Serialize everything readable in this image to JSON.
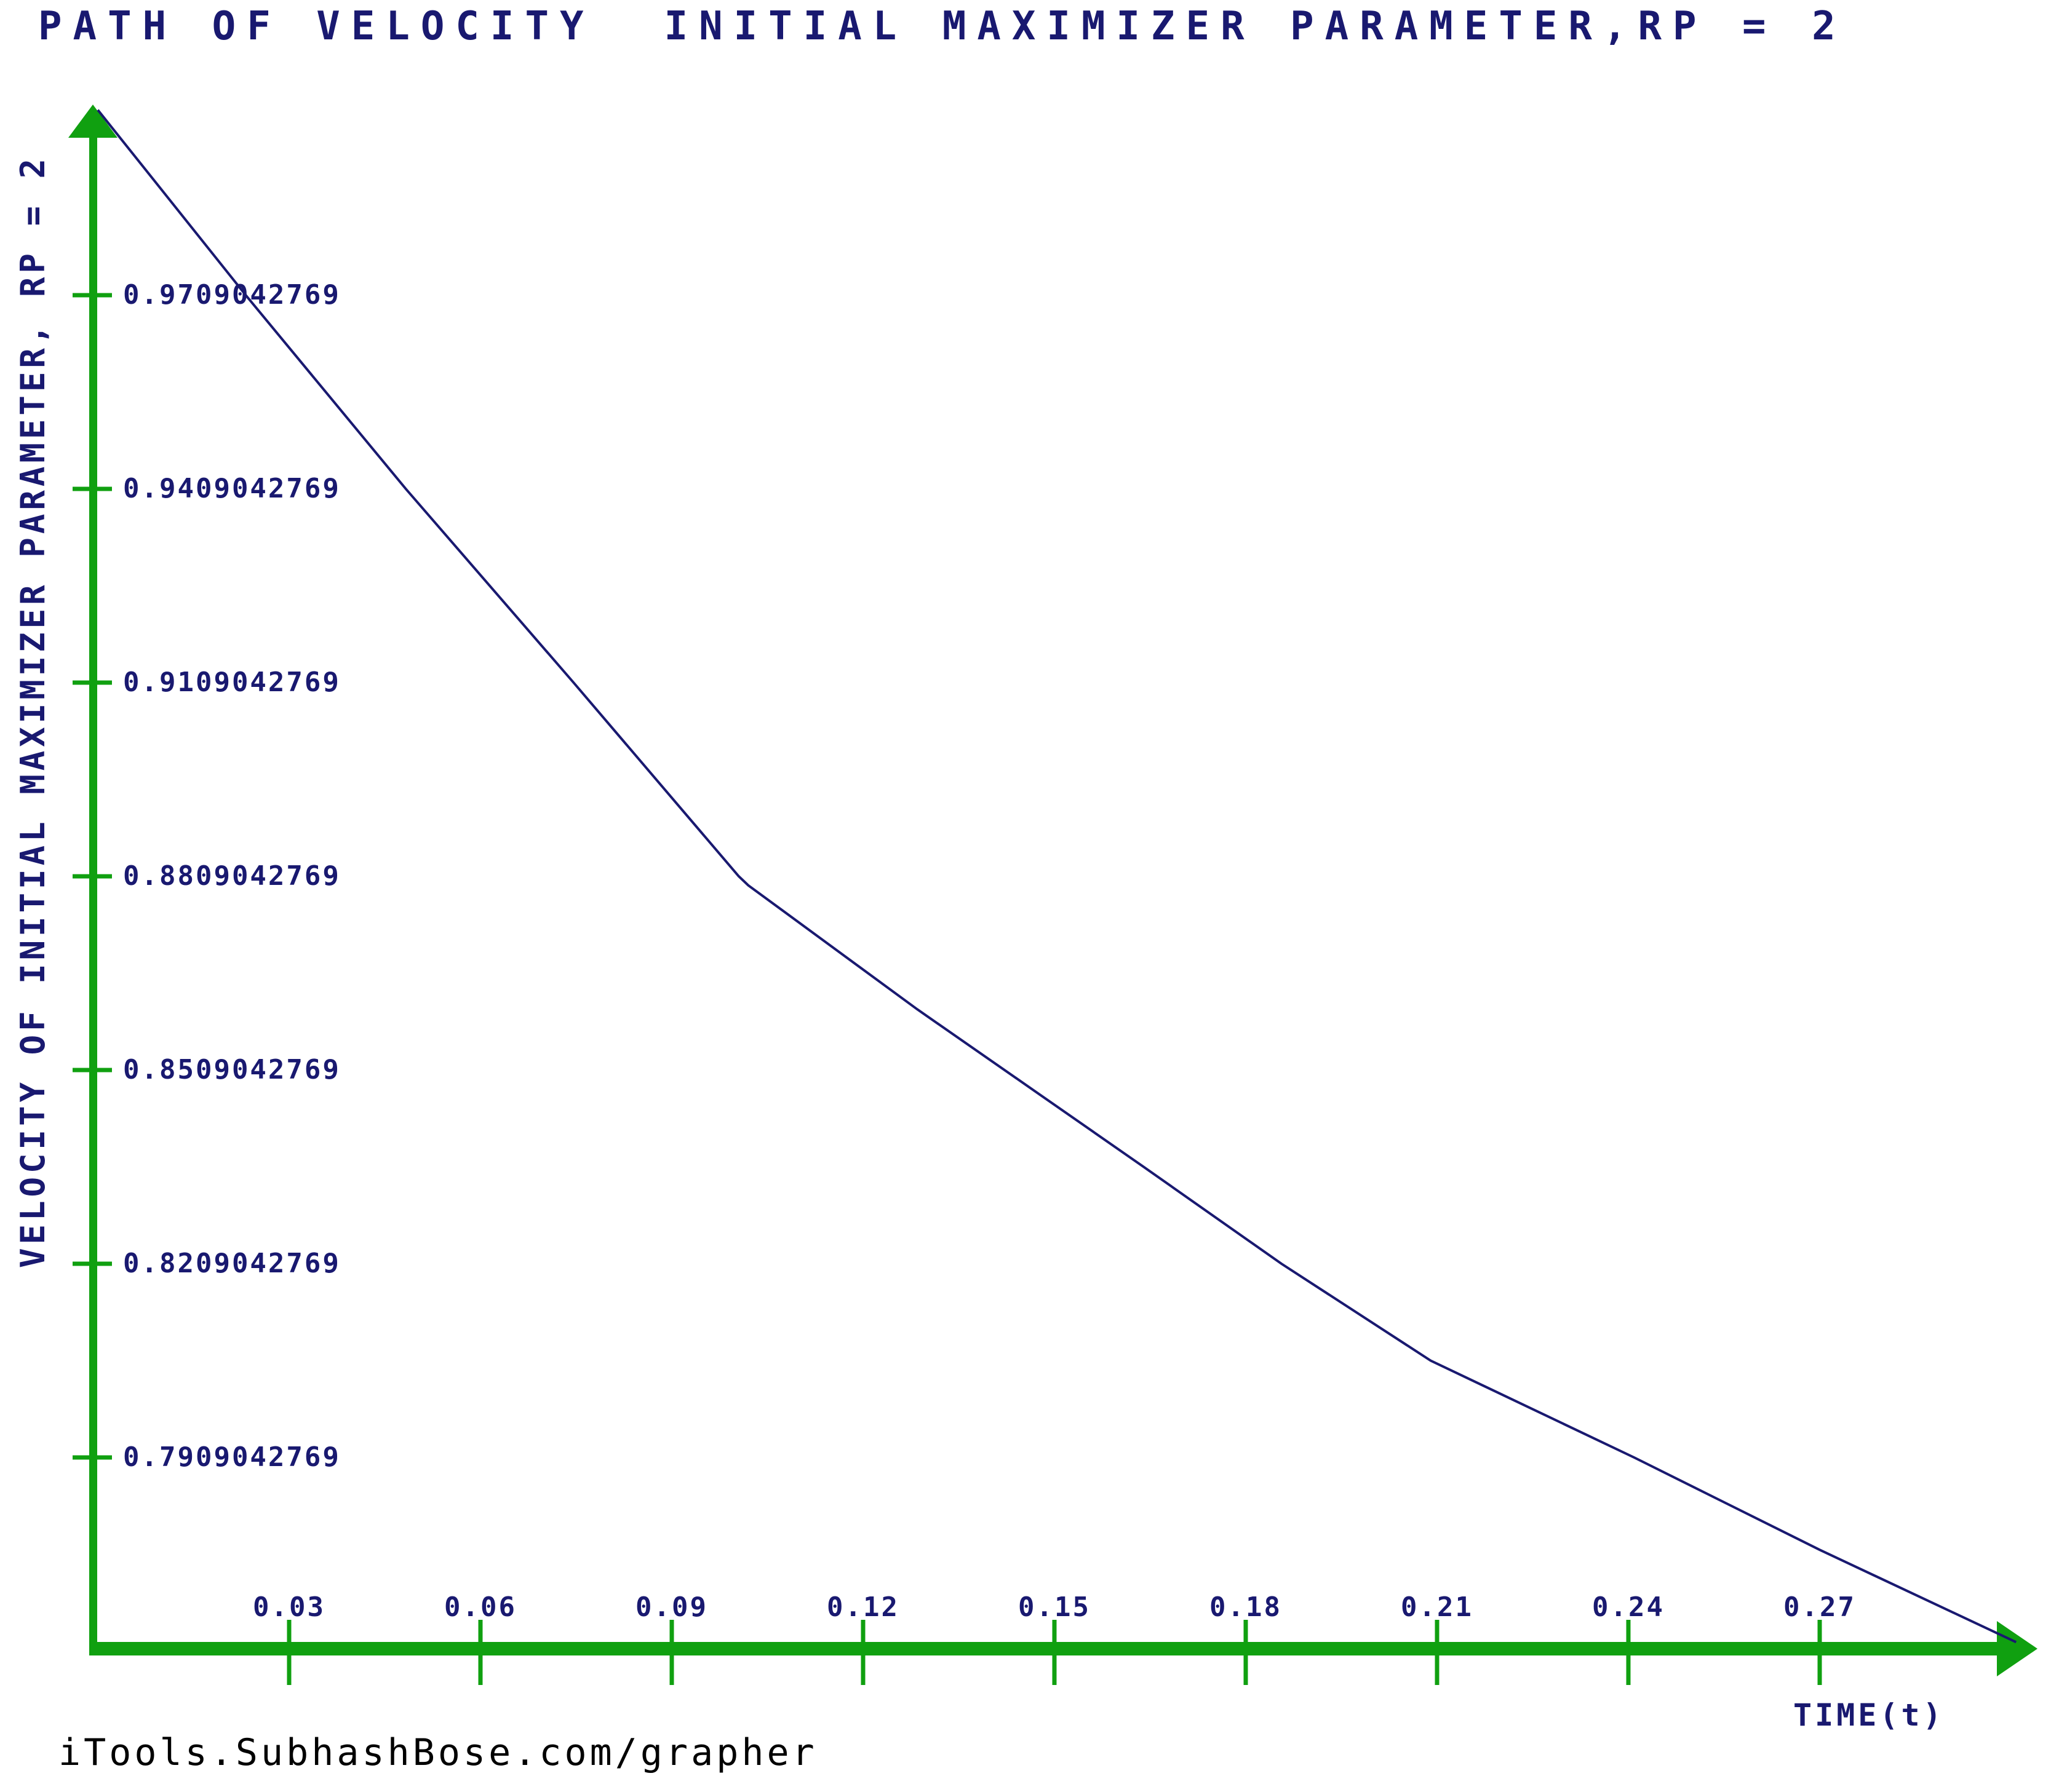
{
  "footer": {
    "credit": "iTools.SubhashBose.com/grapher"
  },
  "chart_data": {
    "type": "line",
    "title": "PATH OF VELOCITY  INITIAL MAXIMIZER PARAMETER,RP = 2",
    "xlabel": "TIME(t)",
    "ylabel": "VELOCITY OF INITIAL MAXIMIZER PARAMETER, RP = 2",
    "x_tick_labels": [
      "0.03",
      "0.06",
      "0.09",
      "0.12",
      "0.15",
      "0.18",
      "0.21",
      "0.24",
      "0.27"
    ],
    "y_tick_labels": [
      "0.9709042769",
      "0.9409042769",
      "0.9109042769",
      "0.8809042769",
      "0.8509042769",
      "0.8209042769",
      "0.7909042769"
    ],
    "xlim": [
      0,
      0.3065
    ],
    "ylim": [
      0.7614,
      1.0009
    ],
    "grid": false,
    "legend_position": "none",
    "series": [
      {
        "name": "velocity of initial maximizer parameter",
        "x": [
          0.0,
          0.0232,
          0.0483,
          0.0746,
          0.1005,
          0.102,
          0.1285,
          0.164,
          0.1856,
          0.209,
          0.2409,
          0.27,
          0.3008
        ],
        "y": [
          0.9996,
          0.9709,
          0.9409,
          0.9109,
          0.8809,
          0.8795,
          0.8603,
          0.8359,
          0.8209,
          0.8059,
          0.7909,
          0.7766,
          0.7623
        ]
      }
    ],
    "colors": {
      "axis": "#10a010",
      "line": "#191970",
      "text": "#191970",
      "footer_text": "#000000",
      "background": "#ffffff"
    }
  }
}
